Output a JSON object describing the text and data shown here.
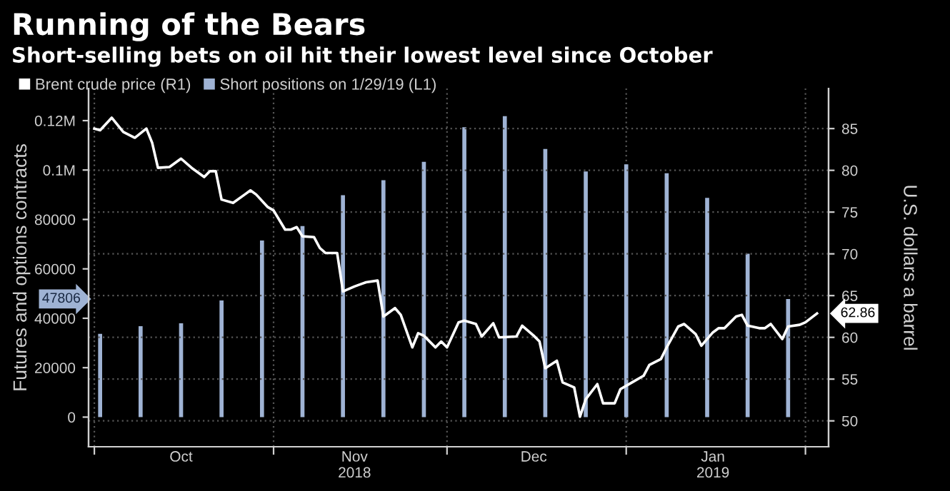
{
  "chart_data": {
    "type": "bar",
    "title": "Running of the Bears",
    "subtitle": "Short-selling bets on oil hit their lowest level since October",
    "x": [
      "2018-10-02",
      "2018-10-09",
      "2018-10-16",
      "2018-10-23",
      "2018-10-30",
      "2018-11-06",
      "2018-11-13",
      "2018-11-20",
      "2018-11-27",
      "2018-12-04",
      "2018-12-11",
      "2018-12-18",
      "2018-12-25",
      "2019-01-01",
      "2019-01-08",
      "2019-01-15",
      "2019-01-22",
      "2019-01-29"
    ],
    "series": [
      {
        "name": "Short positions on 1/29/19 (L1)",
        "color": "#9fb3d4",
        "values": [
          33700,
          36800,
          38000,
          47200,
          71500,
          77300,
          89800,
          95900,
          103300,
          117300,
          121800,
          108500,
          99400,
          102300,
          98700,
          88700,
          66100,
          47806
        ]
      },
      {
        "name": "Brent crude price (R1)",
        "type": "line",
        "axis": "y2",
        "color": "#ffffff",
        "x": [
          "2018-10-01",
          "2018-10-02",
          "2018-10-04",
          "2018-10-06",
          "2018-10-08",
          "2018-10-10",
          "2018-10-11",
          "2018-10-12",
          "2018-10-14",
          "2018-10-16",
          "2018-10-18",
          "2018-10-20",
          "2018-10-21",
          "2018-10-22",
          "2018-10-23",
          "2018-10-25",
          "2018-10-27",
          "2018-10-28",
          "2018-10-29",
          "2018-10-31",
          "2018-11-01",
          "2018-11-03",
          "2018-11-04",
          "2018-11-05",
          "2018-11-06",
          "2018-11-08",
          "2018-11-09",
          "2018-11-10",
          "2018-11-12",
          "2018-11-13",
          "2018-11-15",
          "2018-11-17",
          "2018-11-19",
          "2018-11-20",
          "2018-11-22",
          "2018-11-23",
          "2018-11-25",
          "2018-11-26",
          "2018-11-27",
          "2018-11-29",
          "2018-11-30",
          "2018-12-01",
          "2018-12-03",
          "2018-12-04",
          "2018-12-06",
          "2018-12-07",
          "2018-12-09",
          "2018-12-10",
          "2018-12-13",
          "2018-12-14",
          "2018-12-16",
          "2018-12-17",
          "2018-12-18",
          "2018-12-20",
          "2018-12-21",
          "2018-12-23",
          "2018-12-24",
          "2018-12-25",
          "2018-12-27",
          "2018-12-28",
          "2018-12-30",
          "2018-12-31",
          "2019-01-02",
          "2019-01-04",
          "2019-01-05",
          "2019-01-07",
          "2019-01-08",
          "2019-01-10",
          "2019-01-11",
          "2019-01-13",
          "2019-01-14",
          "2019-01-16",
          "2019-01-17",
          "2019-01-18",
          "2019-01-20",
          "2019-01-21",
          "2019-01-22",
          "2019-01-24",
          "2019-01-25",
          "2019-01-26",
          "2019-01-28",
          "2019-01-29",
          "2019-01-31",
          "2019-02-01",
          "2019-02-03"
        ],
        "values": [
          85.0,
          84.8,
          86.3,
          84.6,
          83.9,
          85.0,
          83.3,
          80.3,
          80.4,
          81.4,
          80.2,
          79.2,
          79.9,
          79.9,
          76.5,
          76.1,
          77.1,
          77.6,
          77.1,
          75.6,
          75.2,
          72.9,
          72.9,
          73.2,
          72.1,
          72.0,
          70.7,
          70.1,
          70.1,
          65.5,
          66.1,
          66.6,
          66.8,
          62.5,
          63.5,
          62.7,
          58.8,
          60.5,
          60.2,
          58.8,
          59.5,
          58.8,
          61.8,
          62.0,
          61.6,
          60.1,
          61.7,
          60.0,
          60.1,
          61.4,
          60.2,
          59.5,
          56.3,
          57.2,
          54.6,
          54.0,
          50.5,
          52.6,
          54.4,
          52.1,
          52.1,
          53.8,
          54.6,
          55.4,
          56.7,
          57.4,
          58.8,
          61.3,
          61.6,
          60.4,
          59.0,
          60.6,
          61.1,
          61.1,
          62.5,
          62.7,
          61.4,
          61.1,
          61.1,
          61.6,
          59.8,
          61.3,
          61.5,
          61.8,
          62.86
        ],
        "value_labels": [
          null,
          null,
          null,
          null,
          null,
          null,
          null,
          null,
          null,
          null,
          null,
          null,
          null,
          null,
          null,
          null,
          null,
          null,
          null,
          null,
          null,
          null,
          null,
          null,
          null,
          null,
          null,
          null,
          null,
          null,
          null,
          null,
          null,
          null,
          null,
          null,
          null,
          null,
          null,
          null,
          null,
          null,
          null,
          null,
          null,
          null,
          null,
          null,
          null,
          null,
          null,
          null,
          null,
          null,
          null,
          null,
          null,
          null,
          null,
          null,
          null,
          null,
          null,
          null,
          null,
          null,
          null,
          null,
          null,
          null,
          null,
          null,
          null,
          null,
          null,
          null,
          null,
          null,
          null,
          null,
          null,
          null,
          null,
          null,
          "62.86"
        ]
      }
    ],
    "xlim": [
      "2018-09-30",
      "2019-02-05"
    ],
    "xticks": [
      {
        "value": "2018-10-01",
        "label": null
      },
      {
        "value": "2018-11-01",
        "label": null
      },
      {
        "value": "2018-12-01",
        "label": null
      },
      {
        "value": "2019-01-01",
        "label": null
      },
      {
        "value": "2019-02-01",
        "label": null
      },
      {
        "value": "2018-10-16",
        "label": "Oct"
      },
      {
        "value": "2018-11-15",
        "label": "Nov\n2018"
      },
      {
        "value": "2018-12-16",
        "label": "Dec"
      },
      {
        "value": "2019-01-16",
        "label": "Jan\n2019"
      }
    ],
    "ylim": [
      -12000,
      133000
    ],
    "yticks": [
      0,
      20000,
      40000,
      60000,
      80000,
      {
        "value": 100000,
        "label": "0.1M"
      },
      {
        "value": 120000,
        "label": "0.12M"
      }
    ],
    "y2lim": [
      46.9,
      89.8
    ],
    "y2ticks": [
      50,
      55,
      60,
      65,
      70,
      75,
      80,
      85
    ],
    "ylabel": "Futures and options contracts",
    "y2label": "U.S. dollars a barrel",
    "annotations": [
      "47806"
    ],
    "grid": true,
    "legend": "top left"
  }
}
